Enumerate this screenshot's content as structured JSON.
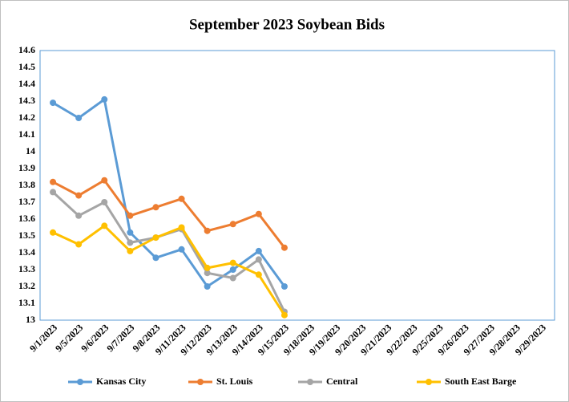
{
  "chart_data": {
    "type": "line",
    "title": "September 2023 Soybean Bids",
    "categories": [
      "9/1/2023",
      "9/5/2023",
      "9/6/2023",
      "9/7/2023",
      "9/8/2023",
      "9/11/2023",
      "9/12/2023",
      "9/13/2023",
      "9/14/2023",
      "9/15/2023",
      "9/18/2023",
      "9/19/2023",
      "9/20/2023",
      "9/21/2023",
      "9/22/2023",
      "9/25/2023",
      "9/26/2023",
      "9/27/2023",
      "9/28/2023",
      "9/29/2023"
    ],
    "series": [
      {
        "name": "Kansas City",
        "color": "#5b9bd5",
        "values": [
          14.29,
          14.2,
          14.31,
          13.52,
          13.37,
          13.42,
          13.2,
          13.3,
          13.41,
          13.2,
          null,
          null,
          null,
          null,
          null,
          null,
          null,
          null,
          null,
          null
        ]
      },
      {
        "name": "St. Louis",
        "color": "#ed7d31",
        "values": [
          13.82,
          13.74,
          13.83,
          13.62,
          13.67,
          13.72,
          13.53,
          13.57,
          13.63,
          13.43,
          null,
          null,
          null,
          null,
          null,
          null,
          null,
          null,
          null,
          null
        ]
      },
      {
        "name": "Central",
        "color": "#a5a5a5",
        "values": [
          13.76,
          13.62,
          13.7,
          13.46,
          13.49,
          13.54,
          13.28,
          13.25,
          13.36,
          13.05,
          null,
          null,
          null,
          null,
          null,
          null,
          null,
          null,
          null,
          null
        ]
      },
      {
        "name": "South East Barge",
        "color": "#ffc000",
        "values": [
          13.52,
          13.45,
          13.56,
          13.41,
          13.49,
          13.55,
          13.31,
          13.34,
          13.27,
          13.03,
          null,
          null,
          null,
          null,
          null,
          null,
          null,
          null,
          null,
          null
        ]
      }
    ],
    "ylim": [
      13,
      14.6
    ],
    "yticks": [
      13,
      13.1,
      13.2,
      13.3,
      13.4,
      13.5,
      13.6,
      13.7,
      13.8,
      13.9,
      14,
      14.1,
      14.2,
      14.3,
      14.4,
      14.5,
      14.6
    ],
    "grid": false,
    "legend": "bottom"
  }
}
